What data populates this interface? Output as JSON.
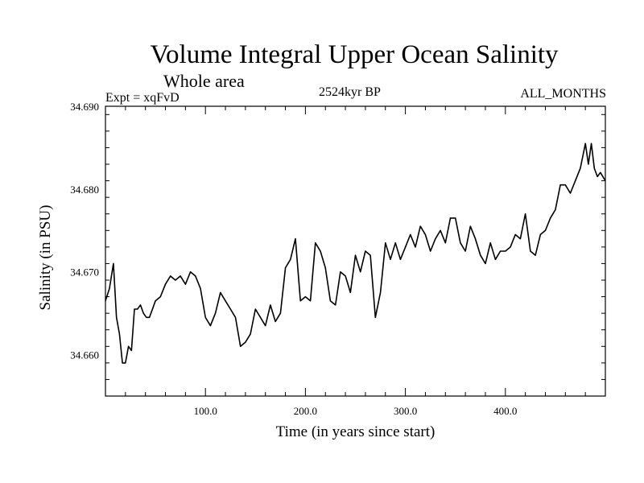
{
  "chart_data": {
    "type": "line",
    "title": "Volume Integral Upper Ocean Salinity",
    "subtitle": "Whole area",
    "left_note": "Expt = xqFvD",
    "center_note": "2524kyr BP",
    "right_note": "ALL_MONTHS",
    "xlabel": "Time (in years since start)",
    "ylabel": "Salinity (in PSU)",
    "xlim": [
      0,
      500
    ],
    "ylim": [
      34.655,
      34.69
    ],
    "x_ticks": [
      100,
      200,
      300,
      400
    ],
    "x_tick_labels": [
      "100.0",
      "200.0",
      "300.0",
      "400.0"
    ],
    "y_ticks": [
      34.66,
      34.67,
      34.68,
      34.69
    ],
    "y_tick_labels": [
      "34.660",
      "34.670",
      "34.680",
      "34.690"
    ],
    "series": [
      {
        "name": "salinity",
        "x": [
          0,
          4,
          8,
          11,
          14,
          17,
          20,
          23,
          26,
          29,
          32,
          35,
          38,
          41,
          44,
          47,
          50,
          55,
          60,
          65,
          70,
          75,
          80,
          85,
          90,
          95,
          100,
          105,
          110,
          115,
          120,
          125,
          130,
          135,
          140,
          145,
          150,
          155,
          160,
          165,
          170,
          175,
          180,
          185,
          190,
          195,
          200,
          205,
          210,
          215,
          220,
          225,
          230,
          235,
          240,
          245,
          250,
          255,
          260,
          265,
          270,
          275,
          280,
          285,
          290,
          295,
          300,
          305,
          310,
          315,
          320,
          325,
          330,
          335,
          340,
          345,
          350,
          355,
          360,
          365,
          370,
          375,
          380,
          385,
          390,
          395,
          400,
          405,
          410,
          415,
          420,
          425,
          430,
          435,
          440,
          445,
          450,
          455,
          460,
          465,
          470,
          475,
          480,
          483,
          486,
          489,
          492,
          495,
          500
        ],
        "values": [
          34.6665,
          34.668,
          34.671,
          34.6645,
          34.6625,
          34.659,
          34.659,
          34.661,
          34.6605,
          34.6655,
          34.6655,
          34.666,
          34.665,
          34.6645,
          34.6645,
          34.6655,
          34.6665,
          34.667,
          34.6685,
          34.6695,
          34.669,
          34.6695,
          34.6685,
          34.67,
          34.6695,
          34.668,
          34.6645,
          34.6635,
          34.665,
          34.6675,
          34.6665,
          34.6655,
          34.6645,
          34.661,
          34.6615,
          34.6625,
          34.6655,
          34.6645,
          34.6635,
          34.666,
          34.664,
          34.665,
          34.6705,
          34.6715,
          34.674,
          34.6665,
          34.667,
          34.6665,
          34.6735,
          34.6725,
          34.6705,
          34.6665,
          34.666,
          34.67,
          34.6695,
          34.6675,
          34.672,
          34.67,
          34.6725,
          34.672,
          34.6645,
          34.6675,
          34.6735,
          34.6715,
          34.6735,
          34.6715,
          34.673,
          34.6745,
          34.673,
          34.6755,
          34.6745,
          34.6725,
          34.674,
          34.675,
          34.6735,
          34.6765,
          34.6765,
          34.6735,
          34.6725,
          34.6755,
          34.674,
          34.672,
          34.671,
          34.6735,
          34.6715,
          34.6725,
          34.6725,
          34.673,
          34.6745,
          34.674,
          34.677,
          34.6725,
          34.672,
          34.6745,
          34.675,
          34.6765,
          34.6775,
          34.6805,
          34.6805,
          34.6795,
          34.681,
          34.6825,
          34.6855,
          34.683,
          34.6855,
          34.6825,
          34.6815,
          34.682,
          34.681
        ]
      }
    ]
  }
}
